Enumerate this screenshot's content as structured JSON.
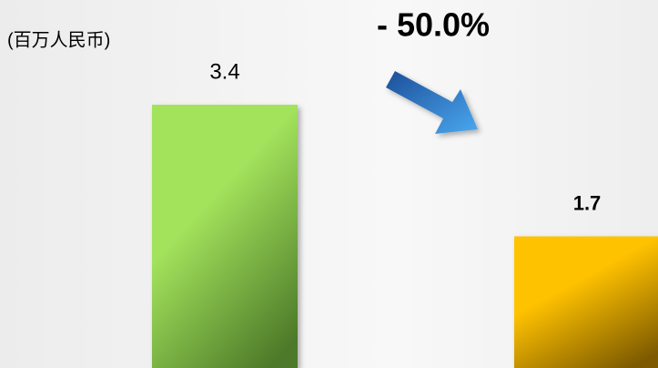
{
  "chart_data": {
    "type": "bar",
    "title": "(百万人民币)",
    "annotation": "- 50.0%",
    "categories": [
      null,
      null
    ],
    "values": [
      3.4,
      1.7
    ],
    "colors": [
      [
        "#a3e35c",
        "#4d7a29"
      ],
      [
        "#ffc200",
        "#7d5a00"
      ]
    ],
    "ylim": [
      0,
      4
    ]
  }
}
